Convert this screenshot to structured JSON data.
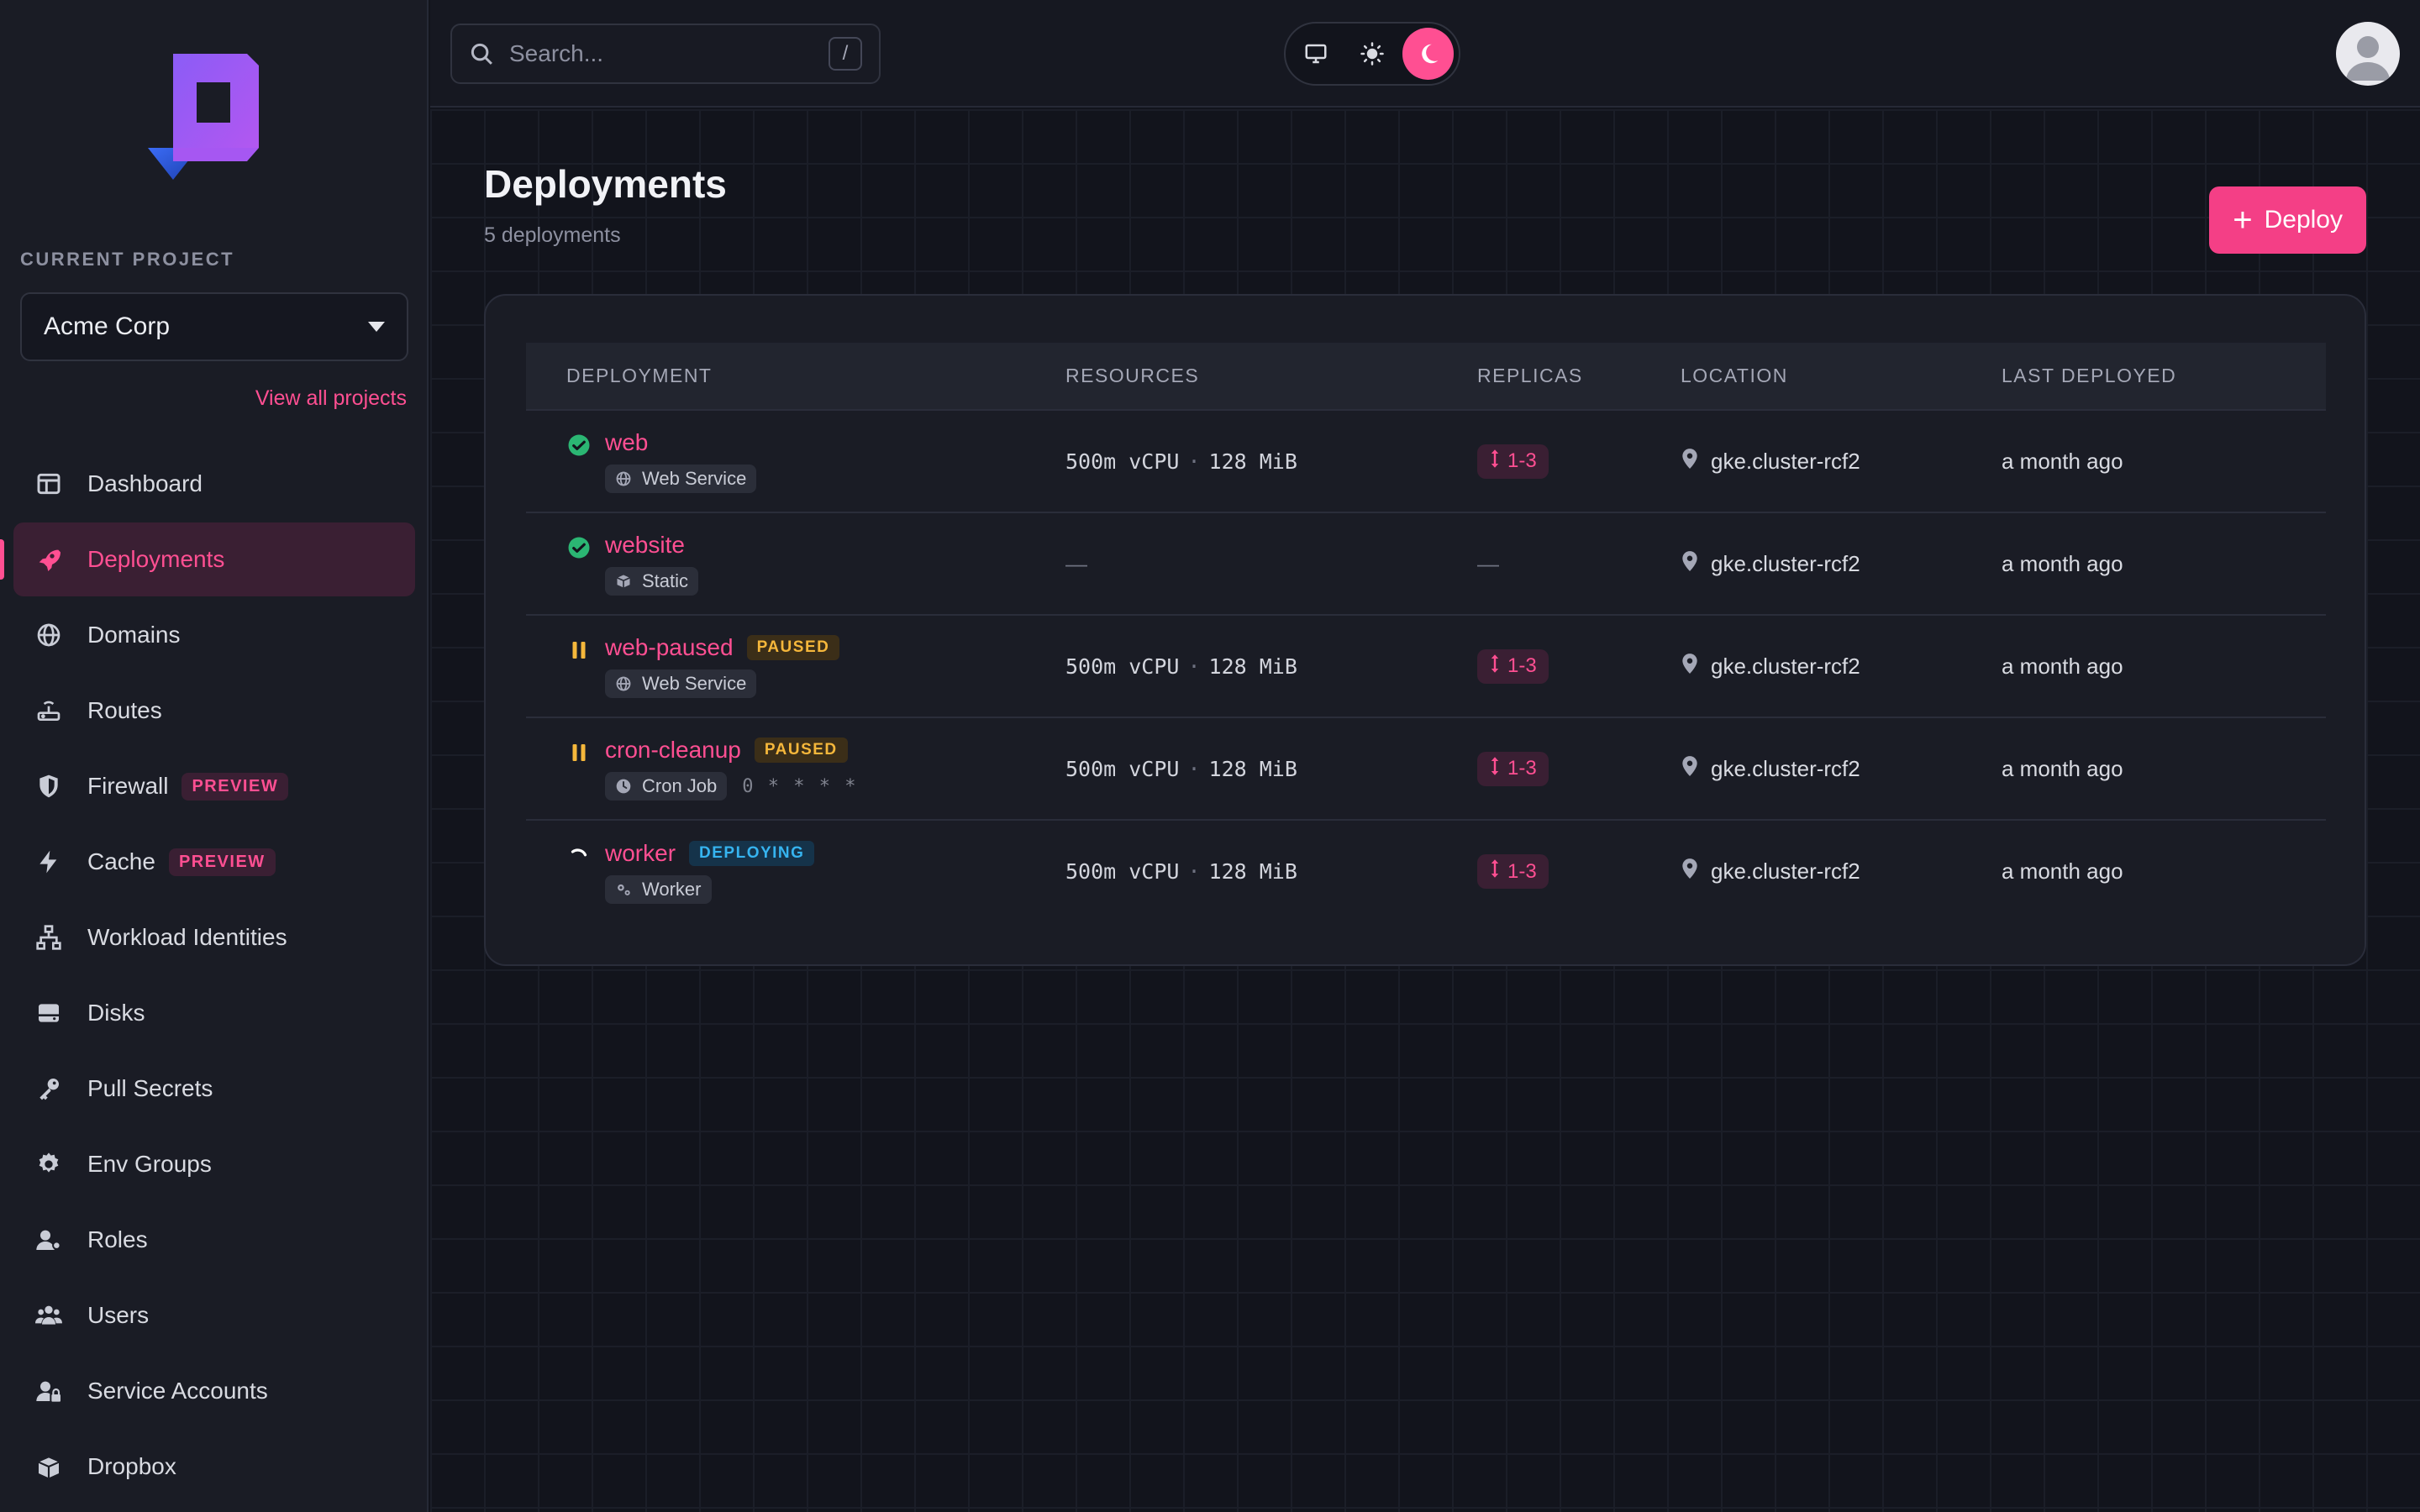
{
  "sidebar": {
    "current_project_label": "CURRENT PROJECT",
    "project_name": "Acme Corp",
    "view_all": "View all projects",
    "items": [
      {
        "label": "Dashboard",
        "icon": "dashboard-icon"
      },
      {
        "label": "Deployments",
        "icon": "rocket-icon",
        "active": true
      },
      {
        "label": "Domains",
        "icon": "globe-icon"
      },
      {
        "label": "Routes",
        "icon": "router-icon"
      },
      {
        "label": "Firewall",
        "icon": "shield-icon",
        "badge": "PREVIEW"
      },
      {
        "label": "Cache",
        "icon": "bolt-icon",
        "badge": "PREVIEW"
      },
      {
        "label": "Workload Identities",
        "icon": "network-icon"
      },
      {
        "label": "Disks",
        "icon": "disk-icon"
      },
      {
        "label": "Pull Secrets",
        "icon": "key-icon"
      },
      {
        "label": "Env Groups",
        "icon": "gear-icon"
      },
      {
        "label": "Roles",
        "icon": "user-role-icon"
      },
      {
        "label": "Users",
        "icon": "users-icon"
      },
      {
        "label": "Service Accounts",
        "icon": "user-lock-icon"
      },
      {
        "label": "Dropbox",
        "icon": "box-icon"
      }
    ]
  },
  "topbar": {
    "search_placeholder": "Search...",
    "search_shortcut": "/",
    "theme_options": [
      "monitor-icon",
      "sun-icon",
      "moon-icon"
    ],
    "theme_active": "moon-icon"
  },
  "main": {
    "title": "Deployments",
    "subtitle": "5 deployments",
    "deploy_button": "Deploy",
    "columns": [
      "DEPLOYMENT",
      "RESOURCES",
      "REPLICAS",
      "LOCATION",
      "LAST DEPLOYED"
    ],
    "rows": [
      {
        "name": "web",
        "status": "success",
        "state_badge": "",
        "type": "Web Service",
        "type_icon": "globe-icon",
        "cron": "",
        "cpu": "500m vCPU",
        "mem": "128 MiB",
        "replicas": "1-3",
        "location": "gke.cluster-rcf2",
        "last_deployed": "a month ago"
      },
      {
        "name": "website",
        "status": "success",
        "state_badge": "",
        "type": "Static",
        "type_icon": "cube-icon",
        "cron": "",
        "cpu": "",
        "mem": "",
        "replicas": "",
        "location": "gke.cluster-rcf2",
        "last_deployed": "a month ago"
      },
      {
        "name": "web-paused",
        "status": "paused",
        "state_badge": "PAUSED",
        "type": "Web Service",
        "type_icon": "globe-icon",
        "cron": "",
        "cpu": "500m vCPU",
        "mem": "128 MiB",
        "replicas": "1-3",
        "location": "gke.cluster-rcf2",
        "last_deployed": "a month ago"
      },
      {
        "name": "cron-cleanup",
        "status": "paused",
        "state_badge": "PAUSED",
        "type": "Cron Job",
        "type_icon": "clock-icon",
        "cron": "0 * * * *",
        "cpu": "500m vCPU",
        "mem": "128 MiB",
        "replicas": "1-3",
        "location": "gke.cluster-rcf2",
        "last_deployed": "a month ago"
      },
      {
        "name": "worker",
        "status": "deploying",
        "state_badge": "DEPLOYING",
        "type": "Worker",
        "type_icon": "gears-icon",
        "cron": "",
        "cpu": "500m vCPU",
        "mem": "128 MiB",
        "replicas": "1-3",
        "location": "gke.cluster-rcf2",
        "last_deployed": "a month ago"
      }
    ],
    "empty_value": "—"
  },
  "colors": {
    "accent": "#ff4f92",
    "success": "#2bb673",
    "paused": "#f5b73b",
    "deploying": "#36b4f0"
  }
}
